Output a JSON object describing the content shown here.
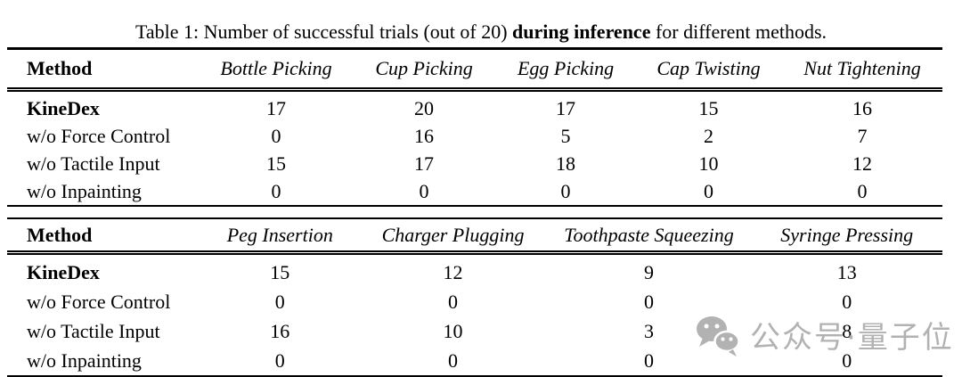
{
  "caption": {
    "prefix": "Table 1: Number of successful trials (out of 20) ",
    "bold": "during inference",
    "suffix": " for different methods."
  },
  "tables": [
    {
      "headers": [
        "Method",
        "Bottle Picking",
        "Cup Picking",
        "Egg Picking",
        "Cap Twisting",
        "Nut Tightening"
      ],
      "rows": [
        {
          "method": "KineDex",
          "bold": true,
          "values": [
            17,
            20,
            17,
            15,
            16
          ]
        },
        {
          "method": "w/o Force Control",
          "bold": false,
          "values": [
            0,
            16,
            5,
            2,
            7
          ]
        },
        {
          "method": "w/o Tactile Input",
          "bold": false,
          "values": [
            15,
            17,
            18,
            10,
            12
          ]
        },
        {
          "method": "w/o Inpainting",
          "bold": false,
          "values": [
            0,
            0,
            0,
            0,
            0
          ]
        }
      ]
    },
    {
      "headers": [
        "Method",
        "Peg Insertion",
        "Charger Plugging",
        "Toothpaste Squeezing",
        "Syringe Pressing"
      ],
      "rows": [
        {
          "method": "KineDex",
          "bold": true,
          "values": [
            15,
            12,
            9,
            13
          ]
        },
        {
          "method": "w/o Force Control",
          "bold": false,
          "values": [
            0,
            0,
            0,
            0
          ]
        },
        {
          "method": "w/o Tactile Input",
          "bold": false,
          "values": [
            16,
            10,
            3,
            8
          ]
        },
        {
          "method": "w/o Inpainting",
          "bold": false,
          "values": [
            0,
            0,
            0,
            0
          ]
        }
      ]
    }
  ],
  "watermark": {
    "icon": "wechat-icon",
    "text": "公众号·量子位",
    "color": "#b2b2b2"
  }
}
